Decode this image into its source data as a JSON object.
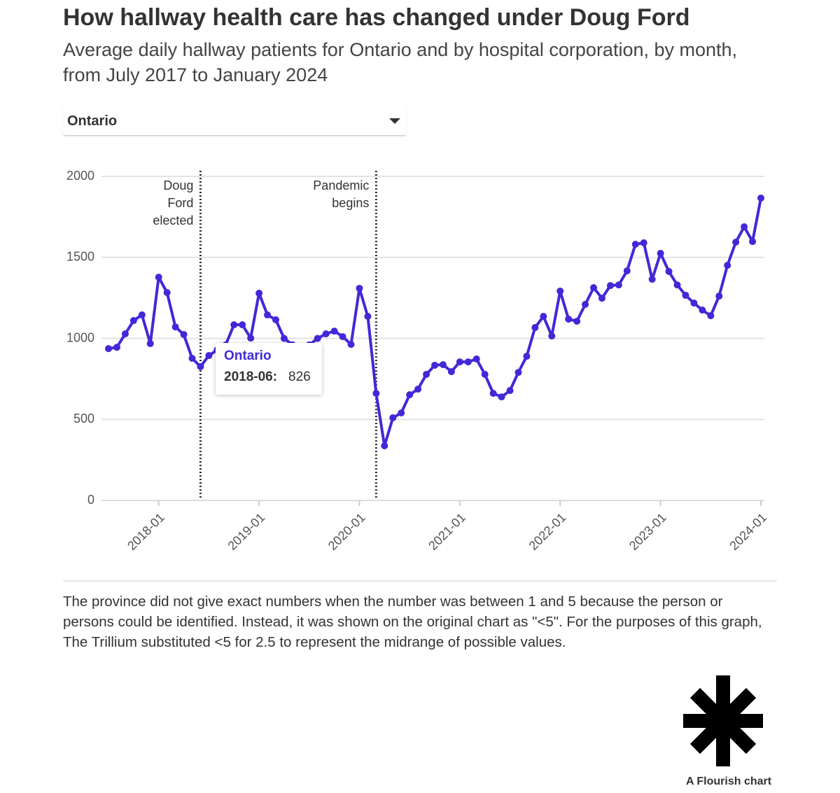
{
  "header": {
    "title": "How hallway health care has changed under Doug Ford",
    "subtitle": "Average daily hallway patients for Ontario and by hospital corporation, by month, from July 2017 to January 2024"
  },
  "controls": {
    "dropdown": "Ontario"
  },
  "chart_data": {
    "type": "line",
    "x": [
      "2017-07",
      "2017-08",
      "2017-09",
      "2017-10",
      "2017-11",
      "2017-12",
      "2018-01",
      "2018-02",
      "2018-03",
      "2018-04",
      "2018-05",
      "2018-06",
      "2018-07",
      "2018-08",
      "2018-09",
      "2018-10",
      "2018-11",
      "2018-12",
      "2019-01",
      "2019-02",
      "2019-03",
      "2019-04",
      "2019-05",
      "2019-06",
      "2019-07",
      "2019-08",
      "2019-09",
      "2019-10",
      "2019-11",
      "2019-12",
      "2020-01",
      "2020-02",
      "2020-03",
      "2020-04",
      "2020-05",
      "2020-06",
      "2020-07",
      "2020-08",
      "2020-09",
      "2020-10",
      "2020-11",
      "2020-12",
      "2021-01",
      "2021-02",
      "2021-03",
      "2021-04",
      "2021-05",
      "2021-06",
      "2021-07",
      "2021-08",
      "2021-09",
      "2021-10",
      "2021-11",
      "2021-12",
      "2022-01",
      "2022-02",
      "2022-03",
      "2022-04",
      "2022-05",
      "2022-06",
      "2022-07",
      "2022-08",
      "2022-09",
      "2022-10",
      "2022-11",
      "2022-12",
      "2023-01",
      "2023-02",
      "2023-03",
      "2023-04",
      "2023-05",
      "2023-06",
      "2023-07",
      "2023-08",
      "2023-09",
      "2023-10",
      "2023-11",
      "2023-12",
      "2024-01"
    ],
    "series": [
      {
        "name": "Ontario",
        "color": "#4129d8",
        "values": [
          937,
          945,
          1028,
          1110,
          1145,
          968,
          1378,
          1283,
          1071,
          1024,
          877,
          826,
          894,
          929,
          959,
          1084,
          1084,
          1002,
          1279,
          1145,
          1115,
          1000,
          960,
          940,
          960,
          1000,
          1028,
          1045,
          1011,
          963,
          1309,
          1136,
          661,
          337,
          510,
          540,
          652,
          687,
          778,
          834,
          838,
          795,
          855,
          855,
          873,
          778,
          661,
          639,
          678,
          790,
          890,
          1067,
          1136,
          1015,
          1292,
          1119,
          1106,
          1210,
          1313,
          1248,
          1326,
          1330,
          1417,
          1581,
          1590,
          1365,
          1525,
          1413,
          1330,
          1266,
          1218,
          1175,
          1140,
          1261,
          1451,
          1594,
          1689,
          1598,
          1866
        ]
      }
    ],
    "xlim": [
      "2017-07",
      "2024-01"
    ],
    "xticks": [
      "2018-01",
      "2019-01",
      "2020-01",
      "2021-01",
      "2022-01",
      "2023-01",
      "2024-01"
    ],
    "ylim": [
      0,
      2000
    ],
    "yticks": [
      0,
      500,
      1000,
      1500,
      2000
    ],
    "grid": true,
    "annotations": [
      {
        "x": "2018-06",
        "label": "Doug Ford elected"
      },
      {
        "x": "2020-03",
        "label": "Pandemic begins"
      }
    ],
    "tooltip": {
      "series": "Ontario",
      "label": "2018-06:",
      "value": 826
    }
  },
  "footer": {
    "note": "The province did not give exact numbers when the number was between 1 and 5 because the person or persons could be identified. Instead, it was shown on the original chart as \"<5\". For the purposes of this graph, The Trillium substituted <5 for 2.5 to represent the midrange of possible values.",
    "credit": "A Flourish chart"
  }
}
